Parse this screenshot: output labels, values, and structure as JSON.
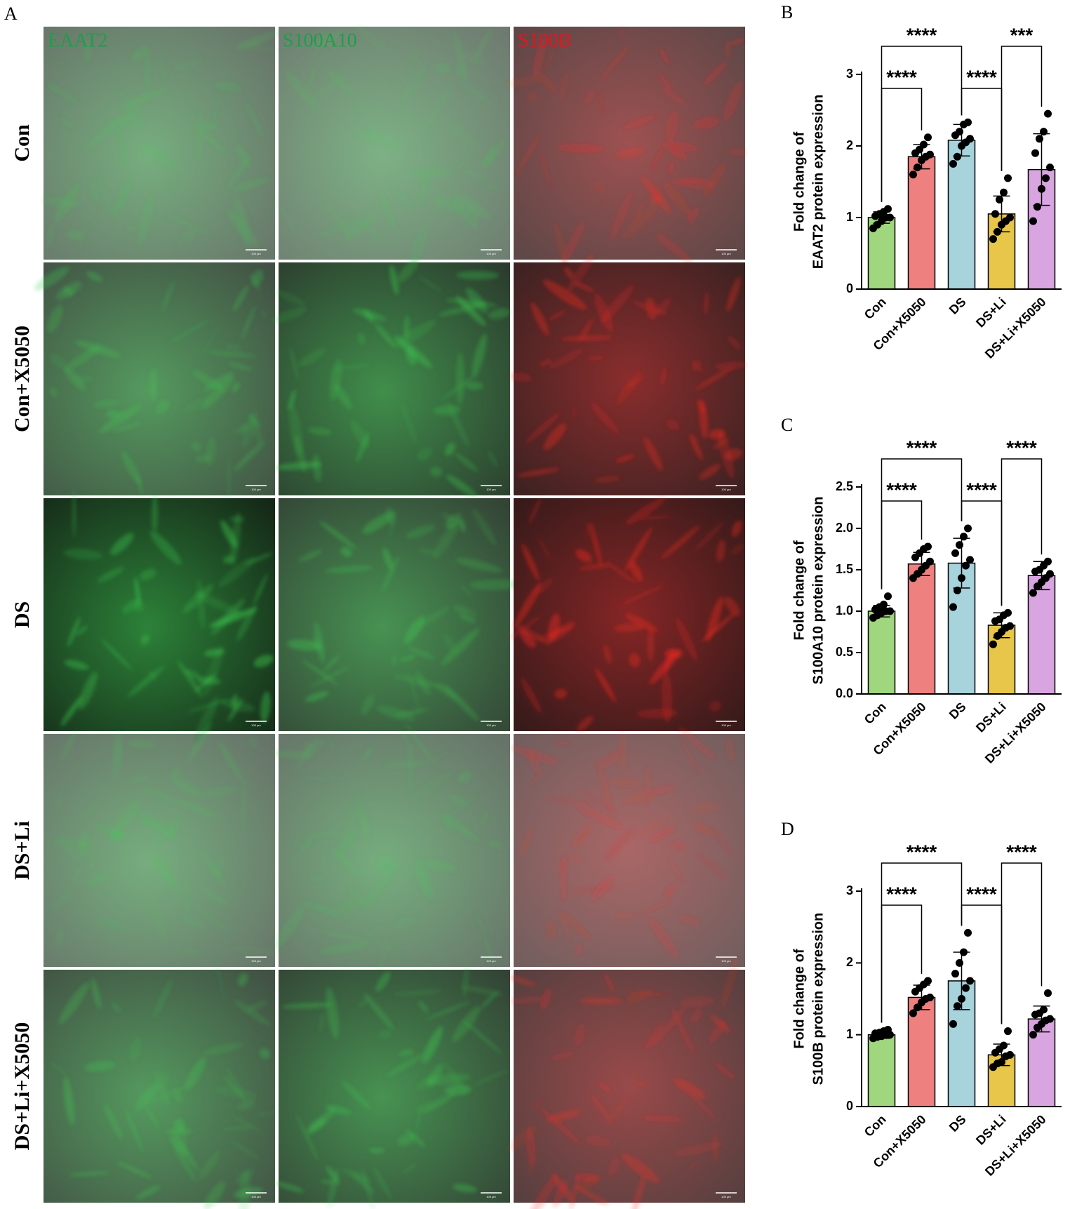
{
  "panel_a": {
    "label": "A",
    "stains": [
      "EAAT2",
      "S100A10",
      "S100B"
    ],
    "stain_colors": [
      "#1e9e4a",
      "#1e9e4a",
      "#e8141c"
    ],
    "groups": [
      "Con",
      "Con+X5050",
      "DS",
      "DS+Li",
      "DS+Li+X5050"
    ],
    "scale_bar": "100 μm"
  },
  "chart_data": [
    {
      "type": "bar",
      "panel": "B",
      "ylabel": [
        "Fold change of",
        "EAAT2 protein expression"
      ],
      "categories": [
        "Con",
        "Con+X5050",
        "DS",
        "DS+Li",
        "DS+Li+X5050"
      ],
      "colors": [
        "#9fd67e",
        "#ee8080",
        "#a7d3dd",
        "#e8c64a",
        "#d9a5e0"
      ],
      "values": [
        1.0,
        1.85,
        2.08,
        1.05,
        1.67
      ],
      "errors": [
        0.08,
        0.17,
        0.22,
        0.25,
        0.5
      ],
      "points": [
        [
          0.85,
          0.9,
          0.95,
          1.0,
          1.0,
          1.02,
          1.05,
          1.08,
          1.12
        ],
        [
          1.6,
          1.7,
          1.8,
          1.85,
          1.88,
          1.9,
          1.95,
          2.02,
          2.12
        ],
        [
          1.75,
          1.85,
          2.0,
          2.05,
          2.1,
          2.15,
          2.2,
          2.3,
          2.33
        ],
        [
          0.7,
          0.8,
          0.9,
          0.95,
          1.0,
          1.05,
          1.25,
          1.35,
          1.55
        ],
        [
          0.95,
          1.15,
          1.4,
          1.55,
          1.7,
          1.9,
          2.1,
          2.2,
          2.45
        ]
      ],
      "ylim": [
        0,
        3
      ],
      "yticks": [
        0,
        1,
        2,
        3
      ],
      "comparisons": [
        {
          "pair": [
            0,
            1
          ],
          "level": 1,
          "label": "****"
        },
        {
          "pair": [
            2,
            3
          ],
          "level": 1,
          "label": "****"
        },
        {
          "pair": [
            0,
            2
          ],
          "level": 2,
          "label": "****"
        },
        {
          "pair": [
            3,
            4
          ],
          "level": 2,
          "label": "***"
        }
      ]
    },
    {
      "type": "bar",
      "panel": "C",
      "ylabel": [
        "Fold change of",
        "S100A10 protein expression"
      ],
      "categories": [
        "Con",
        "Con+X5050",
        "DS",
        "DS+Li",
        "DS+Li+X5050"
      ],
      "colors": [
        "#9fd67e",
        "#ee8080",
        "#a7d3dd",
        "#e8c64a",
        "#d9a5e0"
      ],
      "values": [
        1.0,
        1.57,
        1.58,
        0.83,
        1.43
      ],
      "errors": [
        0.07,
        0.14,
        0.3,
        0.15,
        0.17
      ],
      "points": [
        [
          0.92,
          0.95,
          0.98,
          1.0,
          1.0,
          1.02,
          1.05,
          1.08,
          1.18
        ],
        [
          1.4,
          1.45,
          1.5,
          1.55,
          1.6,
          1.65,
          1.7,
          1.75,
          1.78
        ],
        [
          1.05,
          1.25,
          1.4,
          1.55,
          1.62,
          1.7,
          1.8,
          1.9,
          2.0
        ],
        [
          0.6,
          0.7,
          0.75,
          0.8,
          0.82,
          0.88,
          0.9,
          0.95,
          0.98
        ],
        [
          1.22,
          1.3,
          1.35,
          1.4,
          1.45,
          1.48,
          1.5,
          1.55,
          1.6
        ]
      ],
      "ylim": [
        0,
        2.5
      ],
      "yticks": [
        {
          "value": 0,
          "label": "0.0"
        },
        0.5,
        {
          "value": 1,
          "label": "1.0"
        },
        1.5,
        {
          "value": 2,
          "label": "2.0"
        },
        2.5
      ],
      "comparisons": [
        {
          "pair": [
            0,
            1
          ],
          "level": 1,
          "label": "****"
        },
        {
          "pair": [
            2,
            3
          ],
          "level": 1,
          "label": "****"
        },
        {
          "pair": [
            0,
            2
          ],
          "level": 2,
          "label": "****"
        },
        {
          "pair": [
            3,
            4
          ],
          "level": 2,
          "label": "****"
        }
      ]
    },
    {
      "type": "bar",
      "panel": "D",
      "ylabel": [
        "Fold change of",
        "S100B protein expression"
      ],
      "categories": [
        "Con",
        "Con+X5050",
        "DS",
        "DS+Li",
        "DS+Li+X5050"
      ],
      "colors": [
        "#9fd67e",
        "#ee8080",
        "#a7d3dd",
        "#e8c64a",
        "#d9a5e0"
      ],
      "values": [
        1.0,
        1.52,
        1.75,
        0.72,
        1.22
      ],
      "errors": [
        0.05,
        0.17,
        0.4,
        0.15,
        0.18
      ],
      "points": [
        [
          0.95,
          0.97,
          0.98,
          1.0,
          1.0,
          1.02,
          1.03,
          1.05,
          1.07
        ],
        [
          1.3,
          1.38,
          1.45,
          1.5,
          1.52,
          1.6,
          1.65,
          1.7,
          1.75
        ],
        [
          1.15,
          1.4,
          1.5,
          1.65,
          1.75,
          1.85,
          2.0,
          2.15,
          2.42
        ],
        [
          0.55,
          0.6,
          0.62,
          0.7,
          0.72,
          0.75,
          0.8,
          0.85,
          1.05
        ],
        [
          1.0,
          1.1,
          1.15,
          1.2,
          1.22,
          1.28,
          1.3,
          1.35,
          1.58
        ]
      ],
      "ylim": [
        0,
        3
      ],
      "yticks": [
        0,
        1,
        2,
        3
      ],
      "comparisons": [
        {
          "pair": [
            0,
            1
          ],
          "level": 1,
          "label": "****"
        },
        {
          "pair": [
            2,
            3
          ],
          "level": 1,
          "label": "****"
        },
        {
          "pair": [
            0,
            2
          ],
          "level": 2,
          "label": "****"
        },
        {
          "pair": [
            3,
            4
          ],
          "level": 2,
          "label": "****"
        }
      ]
    }
  ]
}
